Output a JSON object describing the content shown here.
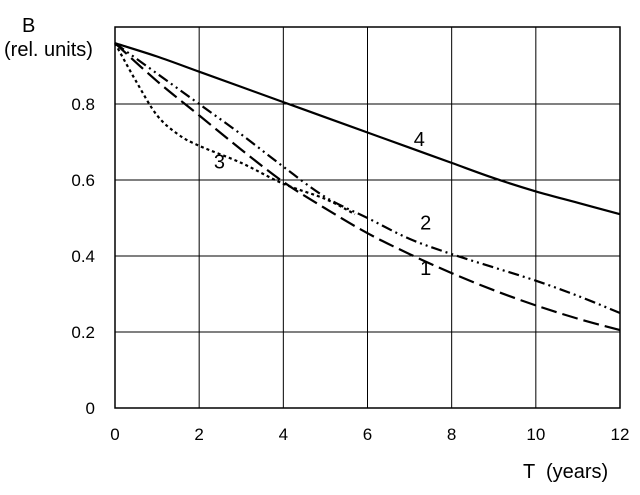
{
  "chart_data": {
    "type": "line",
    "ylabel_line1": "B",
    "ylabel_line2": "(rel. units)",
    "xlabel": "T  (years)",
    "xlim": [
      0,
      12
    ],
    "ylim": [
      0,
      1
    ],
    "xticks": [
      "0",
      "2",
      "4",
      "6",
      "8",
      "10",
      "12"
    ],
    "yticks": [
      "0",
      "0.2",
      "0.4",
      "0.6",
      "0.8"
    ],
    "grid": true,
    "series": [
      {
        "name": "1",
        "style": "long-dash",
        "x": [
          0,
          1,
          2,
          3,
          4,
          5,
          6,
          7,
          8,
          9,
          10,
          11,
          12
        ],
        "y": [
          0.96,
          0.86,
          0.77,
          0.68,
          0.595,
          0.525,
          0.46,
          0.405,
          0.355,
          0.31,
          0.27,
          0.235,
          0.205
        ]
      },
      {
        "name": "2",
        "style": "dash-dot-dot",
        "x": [
          0,
          1,
          2,
          3,
          4,
          5,
          6,
          7,
          8,
          9,
          10,
          11,
          12
        ],
        "y": [
          0.96,
          0.88,
          0.8,
          0.72,
          0.635,
          0.555,
          0.5,
          0.445,
          0.405,
          0.37,
          0.335,
          0.295,
          0.25
        ]
      },
      {
        "name": "3",
        "style": "dotted",
        "x": [
          0,
          0.5,
          1,
          1.5,
          2,
          3,
          4,
          5,
          5.7
        ],
        "y": [
          0.96,
          0.86,
          0.77,
          0.72,
          0.69,
          0.645,
          0.59,
          0.55,
          0.51
        ]
      },
      {
        "name": "4",
        "style": "solid",
        "x": [
          0,
          1,
          2,
          3,
          4,
          5,
          6,
          7,
          8,
          9,
          10,
          11,
          12
        ],
        "y": [
          0.96,
          0.925,
          0.885,
          0.845,
          0.805,
          0.765,
          0.725,
          0.685,
          0.645,
          0.605,
          0.57,
          0.54,
          0.51
        ]
      }
    ],
    "series_label_anchor": [
      {
        "name": "1",
        "x": 7.25,
        "y": 0.35
      },
      {
        "name": "2",
        "x": 7.25,
        "y": 0.47
      },
      {
        "name": "3",
        "x": 2.35,
        "y": 0.63
      },
      {
        "name": "4",
        "x": 7.1,
        "y": 0.69
      }
    ]
  }
}
